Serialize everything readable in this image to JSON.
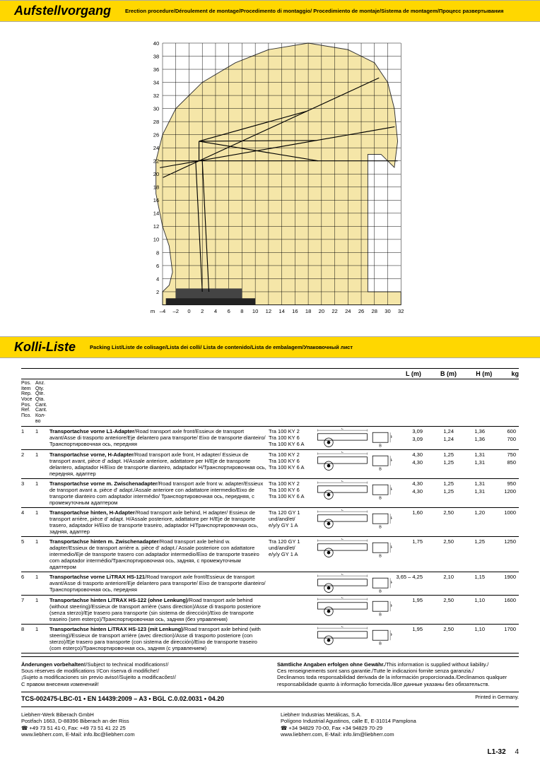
{
  "section1": {
    "title": "Aufstellvorgang",
    "subtitle": "Erection procedure/Déroulement de montage/Procedimento di montaggio/\nProcedimiento de montaje/Sistema de montagem/Процесс развертывания"
  },
  "chart": {
    "x_min": -4,
    "x_max": 32,
    "x_step": 2,
    "y_min": 0,
    "y_max": 40,
    "y_step": 2,
    "x_unit": "m",
    "envelope_color": "#f5e6a8",
    "grid_color": "#000000"
  },
  "section2": {
    "title": "Kolli-Liste",
    "subtitle": "Packing List/Liste de colisage/Lista dei colli/\nLista de contenido/Lista de embalagem/Упаковочный лист"
  },
  "table": {
    "col_heads": {
      "L": "L (m)",
      "B": "B (m)",
      "H": "H (m)",
      "kg": "kg"
    },
    "pos_head": "Pos.\nItem\nRep.\nVoce\nPos.\nRef.\nПоз.",
    "qty_head": "Anz.\nQty.\nQte.\nQta.\nCant.\nCant.\nКол-во",
    "rows": [
      {
        "pos": "1",
        "qty": "1",
        "desc": "<b>Transportachse vorne L1-Adapter</b>/Road transport axle front/Essieux de transport avant/Asse di trasporto anteriore/Eje delantero para transporte/ Eixo de transporte dianteiro/Транспортировочная ось, передняя",
        "models": [
          "Tra 100 KY 2",
          "Tra 100 KY 6",
          "Tra 100 KY 6 A"
        ],
        "vals": [
          [
            "3,09",
            "1,24",
            "1,36",
            "600"
          ],
          [
            "3,09",
            "1,24",
            "1,36",
            "700"
          ]
        ]
      },
      {
        "pos": "2",
        "qty": "1",
        "desc": "<b>Transportachse vorne, H-Adapter</b>/Road transport axle front, H adapter/ Essieux de transport avant, pièce d' adapt. H/Assale anteriore, adattatore per H/Eje de transporte delantero, adaptador H/Eixo de transporte dianteiro, adaptador H/Транспортировочная ось, передняя, адаптер",
        "models": [
          "Tra 100 KY 2",
          "Tra 100 KY 6",
          "Tra 100 KY 6 A"
        ],
        "vals": [
          [
            "4,30",
            "1,25",
            "1,31",
            "750"
          ],
          [
            "4,30",
            "1,25",
            "1,31",
            "850"
          ]
        ]
      },
      {
        "pos": "3",
        "qty": "1",
        "desc": "<b>Transportachse vorne m. Zwischenadapter</b>/Road transport axle front w. adapter/Essieux de transport avant a. pièce d' adapt./Assale anteriore con adattatore intermedio/Eixo de transporte dianteiro com adaptador intermédio/ Транспортировочная ось, передняя, с промежуточным адаптером",
        "models": [
          "Tra 100 KY 2",
          "Tra 100 KY 6",
          "Tra 100 KY 6 A"
        ],
        "vals": [
          [
            "4,30",
            "1,25",
            "1,31",
            "950"
          ],
          [
            "4,30",
            "1,25",
            "1,31",
            "1200"
          ]
        ]
      },
      {
        "pos": "4",
        "qty": "1",
        "desc": "<b>Transportachse hinten, H-Adapter</b>/Road transport axle behind, H adapter/ Essieux de transport arrière, pièce d' adapt. H/Assale posteriore, adattatore per H/Eje de transporte trasero, adaptador H/Eixo de transporte traseiro, adaptador H/Транспортировочная ось, задняя, адаптер",
        "models": [
          "Tra 120 GY 1",
          "und/and/et/",
          "e/y/y GY 1 A"
        ],
        "vals": [
          [
            "1,60",
            "2,50",
            "1,20",
            "1000"
          ]
        ]
      },
      {
        "pos": "5",
        "qty": "1",
        "desc": "<b>Transportachse hinten m. Zwischenadapter</b>/Road transport axle behind w. adapter/Essieux de transport arrière a. pièce d' adapt./ Assale posteriore con adattatore intermedio/Eje de transporte trasero con adaptador intermedio/Eixo de transporte traseiro com adaptador intermédio/Транспортировочная ось, задняя, с промежуточным адаптером",
        "models": [
          "Tra 120 GY 1",
          "und/and/et/",
          "e/y/y GY 1 A"
        ],
        "vals": [
          [
            "1,75",
            "2,50",
            "1,25",
            "1250"
          ]
        ]
      },
      {
        "pos": "6",
        "qty": "1",
        "desc": "<b>Transportachse vorne LiTRAX HS-121</b>/Road transport axle front/Essieux de transport avant/Asse di trasporto anteriore/Eje delantero para transporte/ Eixo de transporte dianteiro/Транспортировочная ось, передняя",
        "models": [],
        "vals": [
          [
            "3,65 – 4,25",
            "2,10",
            "1,15",
            "1900"
          ]
        ]
      },
      {
        "pos": "7",
        "qty": "1",
        "desc": "<b>Transportachse hinten LiTRAX HS-122 (ohne Lenkung)</b>/Road transport axle behind (without steering)/Essieux de transport arrière (sans direction)/Asse di trasporto posteriore (senza sterzo)/Eje trasero para transporte (sin sistema de dirección)/Eixo de transporte traseiro (sem esterço)/Транспортировочная ось, задняя (без управления)",
        "models": [],
        "vals": [
          [
            "1,95",
            "2,50",
            "1,10",
            "1600"
          ]
        ]
      },
      {
        "pos": "8",
        "qty": "1",
        "desc": "<b>Transportachse hinten LiTRAX HS-123 (mit Lenkung)</b>/Road transport axle behind (with steering)/Essieux de transport arrière (avec direction)/Asse di trasporto posteriore (con sterzo)/Eje trasero para transporte (con sistema de dirección)/Eixo de transporte traseiro (com esterço)/Транспортировочная ось, задняя (с управлением)",
        "models": [],
        "vals": [
          [
            "1,95",
            "2,50",
            "1,10",
            "1700"
          ]
        ]
      }
    ]
  },
  "disclaimer": {
    "left": "<b>Änderungen vorbehalten!</b>/Subject to technical modifications!/\nSous réserves de modifications !/Con riserva di modifiche!/\n¡Sujeto a modificaciones sin previo aviso!/Sujeito a modificacões!/\nС правом внесения изменений!",
    "right": "<b>Sämtliche Angaben erfolgen ohne Gewähr.</b>/This information is supplied without liability./\nCes renseignements sont sans garantie./Tutte le indicazioni fornite senza garanzia./\nDeclinamos toda responsabilidad derivada de la información proporcionada./Declinamos qualquer responsabilidade quanto à informação fornecida./Все данные указаны без обязательств."
  },
  "doc_id": "TCS-002475-LBC-01 • EN 14439:2009 – A3 • BGL C.0.02.0031 • 04.20",
  "printed": "Printed in Germany.",
  "addr1": "Liebherr-Werk Biberach GmbH\nPostfach 1663, D-88396 Biberach an der Riss\n☎ +49 73 51 41-0, Fax: +49 73 51 41 22 25\nwww.liebherr.com, E-Mail: info.lbc@liebherr.com",
  "addr2": "Liebherr Industrias Metálicas, S.A.\nPolígono Industrial Agustinos, calle E, E-31014 Pamplona\n☎ +34 94829 70-00, Fax +34 94829 70-29\nwww.liebherr.com, E-Mail: info.lim@liebherr.com",
  "footer": {
    "model": "L1-32",
    "page": "4"
  }
}
